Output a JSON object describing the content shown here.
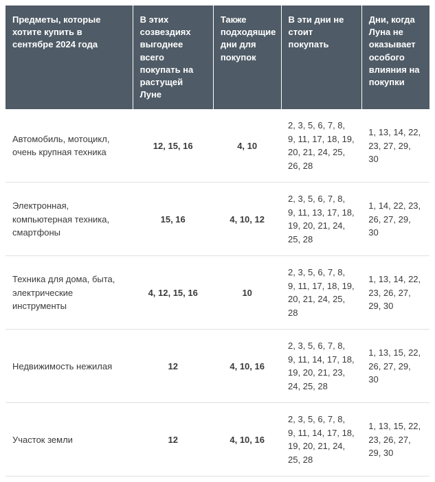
{
  "table": {
    "header_bg": "#4f5b66",
    "header_color": "#ffffff",
    "body_text_color": "#3a3a3a",
    "row_border_color": "#e0e0e0",
    "font_family": "Arial, Helvetica, sans-serif",
    "header_fontsize": 13,
    "body_fontsize": 13,
    "columns": [
      "Предметы, которые хотите купить\nв сентябре 2024 года",
      "В этих созвездиях выгоднее всего покупать на растущей Луне",
      "Также подходящие дни для покупок",
      "В эти дни не стоит покупать",
      "Дни, когда Луна не оказывает особого влияния на покупки"
    ],
    "column_widths_pct": [
      30,
      19,
      16,
      19,
      16
    ],
    "rows": [
      {
        "item": "Автомобиль, мотоцикл, очень крупная техника",
        "best": "12, 15, 16",
        "also": "4, 10",
        "avoid": "2, 3, 5, 6, 7, 8, 9, 11, 17, 18, 19, 20, 21, 24, 25, 26, 28",
        "neutral": "1, 13, 14, 22, 23, 27, 29, 30"
      },
      {
        "item": "Электронная, компьютерная техника, смартфоны",
        "best": "15, 16",
        "also": "4, 10, 12",
        "avoid": "2, 3, 5, 6, 7, 8, 9, 11, 13, 17, 18, 19, 20, 21, 24, 25, 28",
        "neutral": "1, 14, 22, 23, 26, 27, 29, 30"
      },
      {
        "item": "Техника для дома, быта, электрические инструменты",
        "best": "4, 12, 15, 16",
        "also": "10",
        "avoid": "2, 3, 5, 6, 7, 8, 9, 11, 17, 18, 19, 20, 21, 24, 25, 28",
        "neutral": "1, 13, 14, 22, 23, 26, 27, 29, 30"
      },
      {
        "item": "Недвижимость нежилая",
        "best": "12",
        "also": "4, 10, 16",
        "avoid": "2, 3, 5, 6, 7, 8, 9, 11, 14, 17, 18, 19, 20, 21, 23, 24, 25, 28",
        "neutral": "1, 13, 15, 22, 26, 27, 29, 30"
      },
      {
        "item": "Участок земли",
        "best": "12",
        "also": "4, 10, 16",
        "avoid": "2, 3, 5, 6, 7, 8, 9, 11, 14, 17, 18, 19, 20, 21, 24, 25, 28",
        "neutral": "1, 13, 15, 22, 23, 26, 27, 29, 30"
      }
    ]
  }
}
